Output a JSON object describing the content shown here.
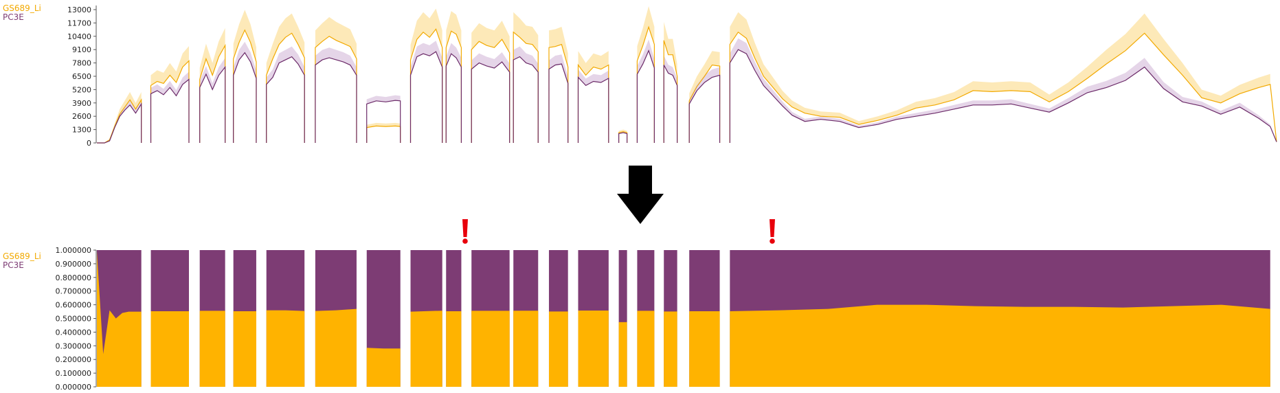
{
  "legend_top": [
    {
      "label": "GS689_Li",
      "color": "#f2a900"
    },
    {
      "label": "PC3E",
      "color": "#7d3c74"
    }
  ],
  "legend_bottom": [
    {
      "label": "GS689_Li",
      "color": "#f2a900"
    },
    {
      "label": "PC3E",
      "color": "#7d3c74"
    }
  ],
  "colors": {
    "series1": "#f2a900",
    "series2": "#6b2a68",
    "bar_top": "#7d3c74",
    "bar_bottom": "#ffb300",
    "band1": "#fde9b8",
    "band2": "#e5d5e8",
    "arrow": "#000000",
    "alert": "#e8000b"
  },
  "icons": [
    "down-arrow-icon",
    "exclamation-icon",
    "exclamation-icon"
  ],
  "chart_data": [
    {
      "type": "line",
      "yticks": [
        "0",
        "1300",
        "2600",
        "3900",
        "5200",
        "6500",
        "7800",
        "9100",
        "10400",
        "11700",
        "13000"
      ],
      "ylim": [
        0,
        13000
      ],
      "segments": [
        {
          "x": [
            0,
            12,
            20,
            28,
            36,
            44,
            52,
            61,
            70
          ],
          "s1": [
            0,
            0,
            300,
            1600,
            2800,
            3500,
            4200,
            3300,
            4200
          ],
          "s2": [
            0,
            0,
            200,
            1500,
            2600,
            3200,
            3700,
            2900,
            3800
          ]
        },
        {
          "x": [
            85,
            95,
            105,
            115,
            125,
            135,
            145
          ],
          "s1": [
            5600,
            6000,
            5800,
            6600,
            5900,
            7400,
            8000
          ],
          "s2": [
            4800,
            5100,
            4700,
            5400,
            4600,
            5700,
            6200
          ]
        },
        {
          "x": [
            162,
            172,
            182,
            192,
            202
          ],
          "s1": [
            6200,
            8200,
            6600,
            8400,
            9500
          ],
          "s2": [
            5400,
            6700,
            5200,
            6600,
            7400
          ]
        },
        {
          "x": [
            215,
            224,
            233,
            242,
            251
          ],
          "s1": [
            8200,
            9800,
            11000,
            9800,
            7900
          ],
          "s2": [
            6600,
            8100,
            8800,
            7900,
            6300
          ]
        },
        {
          "x": [
            267,
            277,
            287,
            297,
            307,
            317,
            327
          ],
          "s1": [
            6600,
            8200,
            9600,
            10300,
            10700,
            9600,
            8300
          ],
          "s2": [
            5700,
            6400,
            7800,
            8100,
            8400,
            7700,
            6600
          ]
        },
        {
          "x": [
            344,
            355,
            366,
            377,
            388,
            399,
            409
          ],
          "s1": [
            9300,
            9900,
            10400,
            10000,
            9700,
            9400,
            8200
          ],
          "s2": [
            7600,
            8100,
            8300,
            8100,
            7900,
            7600,
            6600
          ]
        },
        {
          "x": [
            425,
            440,
            455,
            470,
            478
          ],
          "s1": [
            1500,
            1650,
            1600,
            1650,
            1600
          ],
          "s2": [
            3800,
            4100,
            4000,
            4150,
            4100
          ]
        },
        {
          "x": [
            494,
            504,
            514,
            524,
            534,
            544
          ],
          "s1": [
            8100,
            10100,
            10800,
            10300,
            11100,
            9300
          ],
          "s2": [
            6600,
            8400,
            8700,
            8500,
            8900,
            7400
          ]
        },
        {
          "x": [
            550,
            558,
            566,
            574
          ],
          "s1": [
            9300,
            10900,
            10600,
            9300
          ],
          "s2": [
            7500,
            8700,
            8300,
            7400
          ]
        },
        {
          "x": [
            590,
            602,
            614,
            626,
            638,
            650
          ],
          "s1": [
            9100,
            9900,
            9500,
            9300,
            10100,
            8800
          ],
          "s2": [
            7200,
            7800,
            7500,
            7300,
            7900,
            6900
          ]
        },
        {
          "x": [
            656,
            666,
            676,
            686,
            695
          ],
          "s1": [
            10800,
            10300,
            9700,
            9600,
            8900
          ],
          "s2": [
            8100,
            8400,
            7800,
            7600,
            6900
          ]
        },
        {
          "x": [
            712,
            722,
            732,
            742
          ],
          "s1": [
            9300,
            9400,
            9600,
            7400
          ],
          "s2": [
            7200,
            7600,
            7700,
            5800
          ]
        },
        {
          "x": [
            758,
            770,
            782,
            794,
            806
          ],
          "s1": [
            7600,
            6600,
            7400,
            7200,
            7600
          ],
          "s2": [
            6400,
            5600,
            6000,
            5900,
            6300
          ]
        },
        {
          "x": [
            822,
            829,
            835
          ],
          "s1": [
            1000,
            1100,
            1000
          ],
          "s2": [
            900,
            1000,
            900
          ]
        },
        {
          "x": [
            851,
            860,
            869,
            878
          ],
          "s1": [
            8000,
            9500,
            11300,
            9600
          ],
          "s2": [
            6700,
            7700,
            9000,
            7300
          ]
        },
        {
          "x": [
            893,
            900,
            907,
            914
          ],
          "s1": [
            10000,
            8600,
            8600,
            6500
          ],
          "s2": [
            7600,
            6800,
            6600,
            5600
          ]
        },
        {
          "x": [
            933,
            945,
            957,
            969,
            981
          ],
          "s1": [
            4100,
            5500,
            6500,
            7600,
            7500
          ],
          "s2": [
            3800,
            5100,
            5900,
            6400,
            6600
          ]
        },
        {
          "x": [
            997,
            1010,
            1023,
            1036,
            1050,
            1065,
            1080,
            1095,
            1115,
            1140,
            1170,
            1200,
            1230,
            1260,
            1290,
            1320,
            1350,
            1380,
            1410,
            1440,
            1470,
            1500,
            1530,
            1560,
            1590,
            1620,
            1650,
            1680,
            1710,
            1740,
            1770,
            1800,
            1830,
            1848
          ],
          "s1": [
            9600,
            10800,
            10200,
            8300,
            6500,
            5400,
            4300,
            3500,
            2900,
            2600,
            2500,
            1800,
            2200,
            2700,
            3400,
            3700,
            4200,
            5100,
            5000,
            5100,
            5000,
            4000,
            5000,
            6300,
            7700,
            9000,
            10700,
            8600,
            6600,
            4400,
            3900,
            4800,
            5400,
            5700
          ],
          "s2": [
            7800,
            9100,
            8700,
            7100,
            5600,
            4600,
            3600,
            2700,
            2100,
            2300,
            2100,
            1500,
            1800,
            2300,
            2600,
            2900,
            3300,
            3700,
            3700,
            3800,
            3400,
            3000,
            3900,
            4900,
            5400,
            6100,
            7400,
            5300,
            4000,
            3600,
            2800,
            3500,
            2400,
            1600
          ]
        }
      ],
      "tail": {
        "x": [
          1848,
          1858
        ],
        "s1": [
          5700,
          100
        ],
        "s2": [
          1600,
          100
        ]
      }
    },
    {
      "type": "bar",
      "yticks": [
        "0.000000",
        "0.100000",
        "0.200000",
        "0.300000",
        "0.400000",
        "0.500000",
        "0.600000",
        "0.700000",
        "0.800000",
        "0.900000",
        "1.000000"
      ],
      "ylim": [
        0,
        1
      ],
      "segments": [
        {
          "x_start": 0,
          "x_end": 70,
          "bottom_fraction": [
            0.99,
            0.24,
            0.56,
            0.5,
            0.54,
            0.55,
            0.55,
            0.55
          ]
        },
        {
          "x_start": 85,
          "x_end": 145,
          "bottom_fraction": [
            0.553,
            0.553,
            0.553
          ]
        },
        {
          "x_start": 162,
          "x_end": 202,
          "bottom_fraction": [
            0.556,
            0.556
          ]
        },
        {
          "x_start": 215,
          "x_end": 251,
          "bottom_fraction": [
            0.553,
            0.553
          ]
        },
        {
          "x_start": 267,
          "x_end": 327,
          "bottom_fraction": [
            0.56,
            0.56,
            0.555
          ]
        },
        {
          "x_start": 344,
          "x_end": 409,
          "bottom_fraction": [
            0.555,
            0.56,
            0.57
          ]
        },
        {
          "x_start": 425,
          "x_end": 478,
          "bottom_fraction": [
            0.285,
            0.28,
            0.28
          ]
        },
        {
          "x_start": 494,
          "x_end": 544,
          "bottom_fraction": [
            0.55,
            0.557
          ]
        },
        {
          "x_start": 550,
          "x_end": 574,
          "bottom_fraction": [
            0.553
          ]
        },
        {
          "x_start": 590,
          "x_end": 650,
          "bottom_fraction": [
            0.556,
            0.556
          ]
        },
        {
          "x_start": 656,
          "x_end": 695,
          "bottom_fraction": [
            0.557
          ]
        },
        {
          "x_start": 712,
          "x_end": 742,
          "bottom_fraction": [
            0.551
          ]
        },
        {
          "x_start": 758,
          "x_end": 806,
          "bottom_fraction": [
            0.558
          ]
        },
        {
          "x_start": 822,
          "x_end": 835,
          "bottom_fraction": [
            0.473
          ]
        },
        {
          "x_start": 851,
          "x_end": 878,
          "bottom_fraction": [
            0.556
          ]
        },
        {
          "x_start": 893,
          "x_end": 914,
          "bottom_fraction": [
            0.551
          ]
        },
        {
          "x_start": 933,
          "x_end": 981,
          "bottom_fraction": [
            0.553
          ]
        },
        {
          "x_start": 997,
          "x_end": 1848,
          "bottom_fraction": [
            0.553,
            0.56,
            0.57,
            0.6,
            0.6,
            0.59,
            0.585,
            0.585,
            0.58,
            0.59,
            0.6,
            0.57
          ]
        }
      ]
    }
  ]
}
